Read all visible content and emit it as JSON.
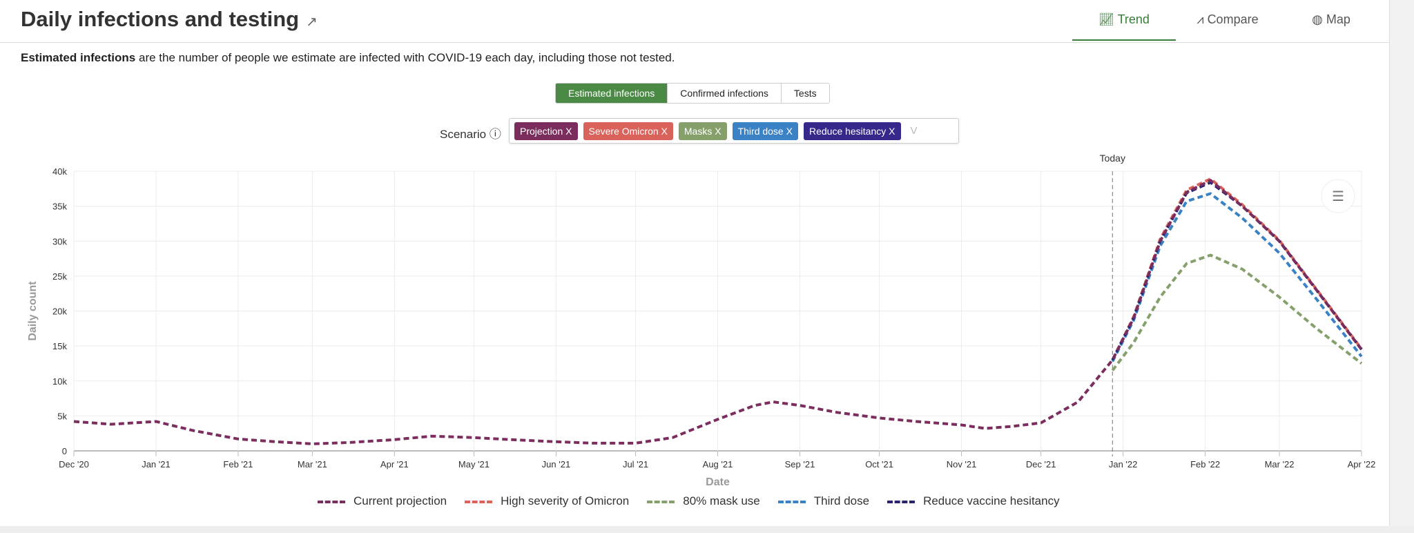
{
  "header": {
    "title": "Daily infections and testing",
    "tabs": [
      {
        "label": "Trend",
        "icon": "line-chart-icon",
        "active": true
      },
      {
        "label": "Compare",
        "icon": "compare-chart-icon"
      },
      {
        "label": "Map",
        "icon": "globe-icon"
      }
    ]
  },
  "description": {
    "bold": "Estimated infections",
    "rest": " are the number of people we estimate are infected with COVID-19 each day, including those not tested."
  },
  "toggle": [
    "Estimated infections",
    "Confirmed infections",
    "Tests"
  ],
  "scenario": {
    "label": "Scenario",
    "chips": [
      {
        "label": "Projection",
        "color": "#7b2d5e"
      },
      {
        "label": "Severe Omicron",
        "color": "#d9625a"
      },
      {
        "label": "Masks",
        "color": "#86a06b"
      },
      {
        "label": "Third dose",
        "color": "#3a82c4"
      },
      {
        "label": "Reduce hesitancy",
        "color": "#35288a"
      }
    ],
    "remove": "X",
    "caret": "V"
  },
  "chart_data": {
    "type": "line",
    "xlabel": "Date",
    "ylabel": "Daily count",
    "ylim": [
      0,
      40000
    ],
    "yticks": [
      "0",
      "5k",
      "10k",
      "15k",
      "20k",
      "25k",
      "30k",
      "35k",
      "40k"
    ],
    "xticks": [
      "Dec '20",
      "Jan '21",
      "Feb '21",
      "Mar '21",
      "Apr '21",
      "May '21",
      "Jun '21",
      "Jul '21",
      "Aug '21",
      "Sep '21",
      "Oct '21",
      "Nov '21",
      "Dec '21",
      "Jan '22",
      "Feb '22",
      "Mar '22",
      "Apr '22"
    ],
    "xtick_dates": [
      "2020-12-01",
      "2021-01-01",
      "2021-02-01",
      "2021-03-01",
      "2021-04-01",
      "2021-05-01",
      "2021-06-01",
      "2021-07-01",
      "2021-08-01",
      "2021-09-01",
      "2021-10-01",
      "2021-11-01",
      "2021-12-01",
      "2022-01-01",
      "2022-02-01",
      "2022-03-01",
      "2022-04-01"
    ],
    "xlim": [
      "2020-12-01",
      "2022-04-01"
    ],
    "annotation": {
      "label": "Today",
      "date": "2021-12-28"
    },
    "grid": true,
    "legend": "bottom",
    "series": [
      {
        "name": "Current projection",
        "color": "#7b2d5e",
        "points": [
          [
            "2020-12-01",
            4200
          ],
          [
            "2020-12-15",
            3800
          ],
          [
            "2021-01-01",
            4200
          ],
          [
            "2021-01-15",
            2900
          ],
          [
            "2021-02-01",
            1700
          ],
          [
            "2021-02-15",
            1300
          ],
          [
            "2021-03-01",
            1000
          ],
          [
            "2021-03-15",
            1200
          ],
          [
            "2021-04-01",
            1600
          ],
          [
            "2021-04-15",
            2100
          ],
          [
            "2021-05-01",
            1900
          ],
          [
            "2021-05-15",
            1600
          ],
          [
            "2021-06-01",
            1300
          ],
          [
            "2021-06-15",
            1100
          ],
          [
            "2021-07-01",
            1100
          ],
          [
            "2021-07-15",
            1900
          ],
          [
            "2021-08-01",
            4500
          ],
          [
            "2021-08-15",
            6500
          ],
          [
            "2021-08-22",
            7000
          ],
          [
            "2021-09-01",
            6500
          ],
          [
            "2021-09-15",
            5500
          ],
          [
            "2021-10-01",
            4700
          ],
          [
            "2021-10-15",
            4200
          ],
          [
            "2021-11-01",
            3700
          ],
          [
            "2021-11-10",
            3200
          ],
          [
            "2021-11-20",
            3500
          ],
          [
            "2021-12-01",
            4000
          ],
          [
            "2021-12-15",
            7000
          ],
          [
            "2021-12-28",
            13000
          ],
          [
            "2022-01-05",
            19000
          ],
          [
            "2022-01-15",
            30000
          ],
          [
            "2022-01-25",
            37000
          ],
          [
            "2022-02-03",
            38700
          ],
          [
            "2022-02-15",
            35000
          ],
          [
            "2022-03-01",
            30000
          ],
          [
            "2022-03-15",
            23000
          ],
          [
            "2022-04-01",
            14500
          ]
        ]
      },
      {
        "name": "High severity of Omicron",
        "color": "#d9625a",
        "points": [
          [
            "2021-12-28",
            13000
          ],
          [
            "2022-01-05",
            19200
          ],
          [
            "2022-01-15",
            30300
          ],
          [
            "2022-01-25",
            37300
          ],
          [
            "2022-02-03",
            38900
          ],
          [
            "2022-02-15",
            35200
          ],
          [
            "2022-03-01",
            30100
          ],
          [
            "2022-03-15",
            23100
          ],
          [
            "2022-04-01",
            14600
          ]
        ]
      },
      {
        "name": "80% mask use",
        "color": "#86a06b",
        "points": [
          [
            "2021-12-28",
            11500
          ],
          [
            "2022-01-05",
            15500
          ],
          [
            "2022-01-15",
            22000
          ],
          [
            "2022-01-25",
            26800
          ],
          [
            "2022-02-03",
            28000
          ],
          [
            "2022-02-15",
            26000
          ],
          [
            "2022-03-01",
            22000
          ],
          [
            "2022-03-15",
            17500
          ],
          [
            "2022-04-01",
            12500
          ]
        ]
      },
      {
        "name": "Third dose",
        "color": "#3a82c4",
        "points": [
          [
            "2021-12-28",
            12800
          ],
          [
            "2022-01-05",
            18700
          ],
          [
            "2022-01-15",
            29300
          ],
          [
            "2022-01-25",
            35700
          ],
          [
            "2022-02-03",
            36800
          ],
          [
            "2022-02-15",
            33300
          ],
          [
            "2022-03-01",
            28300
          ],
          [
            "2022-03-15",
            21700
          ],
          [
            "2022-04-01",
            13500
          ]
        ]
      },
      {
        "name": "Reduce vaccine hesitancy",
        "color": "#2a2370",
        "points": [
          [
            "2021-12-28",
            13000
          ],
          [
            "2022-01-05",
            19000
          ],
          [
            "2022-01-15",
            30000
          ],
          [
            "2022-01-25",
            36900
          ],
          [
            "2022-02-03",
            38400
          ],
          [
            "2022-02-15",
            35000
          ],
          [
            "2022-03-01",
            30000
          ],
          [
            "2022-03-15",
            23000
          ],
          [
            "2022-04-01",
            14500
          ]
        ]
      }
    ]
  }
}
